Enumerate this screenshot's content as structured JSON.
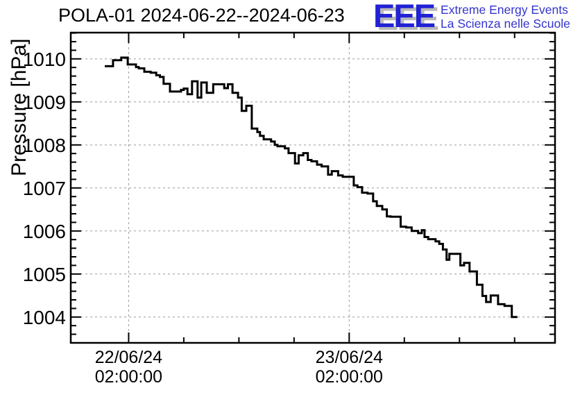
{
  "chart_data": {
    "type": "line",
    "style": "steps-post",
    "title": "POLA-01 2024-06-22--2024-06-23",
    "ylabel": "Pressure [hPa]",
    "xlabel": "",
    "line_color": "#000000",
    "background": "#ffffff",
    "grid": {
      "show": true,
      "color": "#999999",
      "dash": "3,4"
    },
    "x_axis": {
      "unit": "hours since 2024-06-22 00:00:00",
      "min": -4.3,
      "max": 48.4,
      "major_ticks": [
        {
          "t": 2,
          "label": [
            "22/06/24",
            "02:00:00"
          ]
        },
        {
          "t": 26,
          "label": [
            "23/06/24",
            "02:00:00"
          ]
        }
      ],
      "minor_ticks": [
        8,
        14,
        20,
        32,
        38,
        44
      ]
    },
    "y_axis": {
      "min": 1003.4,
      "max": 1010.61,
      "major_ticks": [
        1004,
        1005,
        1006,
        1007,
        1008,
        1009,
        1010
      ],
      "minor_step": 0.2
    },
    "series": [
      {
        "name": "pressure",
        "end_t": 44.3,
        "points": [
          [
            -0.6,
            1009.83
          ],
          [
            0.3,
            1009.97
          ],
          [
            1.2,
            1010.03
          ],
          [
            1.9,
            1009.87
          ],
          [
            2.8,
            1009.81
          ],
          [
            3.1,
            1009.78
          ],
          [
            3.7,
            1009.7
          ],
          [
            4.4,
            1009.68
          ],
          [
            5.0,
            1009.62
          ],
          [
            5.4,
            1009.58
          ],
          [
            5.8,
            1009.42
          ],
          [
            6.5,
            1009.24
          ],
          [
            7.7,
            1009.28
          ],
          [
            8.0,
            1009.31
          ],
          [
            8.4,
            1009.18
          ],
          [
            8.9,
            1009.48
          ],
          [
            9.5,
            1009.1
          ],
          [
            9.9,
            1009.45
          ],
          [
            10.5,
            1009.21
          ],
          [
            11.2,
            1009.41
          ],
          [
            12.4,
            1009.32
          ],
          [
            12.8,
            1009.41
          ],
          [
            13.3,
            1009.21
          ],
          [
            13.9,
            1009.1
          ],
          [
            14.3,
            1008.79
          ],
          [
            14.8,
            1008.91
          ],
          [
            15.4,
            1008.38
          ],
          [
            16.0,
            1008.3
          ],
          [
            16.3,
            1008.21
          ],
          [
            16.7,
            1008.13
          ],
          [
            17.5,
            1008.08
          ],
          [
            17.9,
            1008.0
          ],
          [
            18.2,
            1007.97
          ],
          [
            19.0,
            1007.92
          ],
          [
            19.4,
            1007.81
          ],
          [
            20.1,
            1007.57
          ],
          [
            20.5,
            1007.76
          ],
          [
            21.0,
            1007.81
          ],
          [
            21.5,
            1007.65
          ],
          [
            21.9,
            1007.62
          ],
          [
            22.5,
            1007.54
          ],
          [
            23.0,
            1007.5
          ],
          [
            23.7,
            1007.31
          ],
          [
            24.1,
            1007.39
          ],
          [
            24.8,
            1007.29
          ],
          [
            25.3,
            1007.26
          ],
          [
            26.5,
            1007.06
          ],
          [
            26.9,
            1007.02
          ],
          [
            27.4,
            1006.89
          ],
          [
            28.0,
            1006.87
          ],
          [
            28.6,
            1006.69
          ],
          [
            29.0,
            1006.58
          ],
          [
            29.6,
            1006.5
          ],
          [
            30.1,
            1006.34
          ],
          [
            30.5,
            1006.33
          ],
          [
            31.6,
            1006.1
          ],
          [
            32.2,
            1006.08
          ],
          [
            32.8,
            1006.0
          ],
          [
            33.5,
            1005.95
          ],
          [
            33.9,
            1006.02
          ],
          [
            34.2,
            1005.86
          ],
          [
            34.6,
            1005.81
          ],
          [
            35.4,
            1005.76
          ],
          [
            35.8,
            1005.7
          ],
          [
            36.2,
            1005.57
          ],
          [
            36.6,
            1005.33
          ],
          [
            36.9,
            1005.47
          ],
          [
            38.1,
            1005.2
          ],
          [
            38.5,
            1005.26
          ],
          [
            39.1,
            1005.06
          ],
          [
            39.9,
            1004.75
          ],
          [
            40.5,
            1004.49
          ],
          [
            40.9,
            1004.35
          ],
          [
            41.4,
            1004.5
          ],
          [
            42.2,
            1004.3
          ],
          [
            42.9,
            1004.26
          ],
          [
            43.7,
            1004.0
          ]
        ]
      }
    ]
  },
  "logo": {
    "letters": "EEE",
    "line1": "Extreme Energy Events",
    "line2": "La Scienza nelle Scuole",
    "letter_color": "#2121d6",
    "text_color": "#3434cf",
    "shadow_color": "#b9b9b9"
  }
}
